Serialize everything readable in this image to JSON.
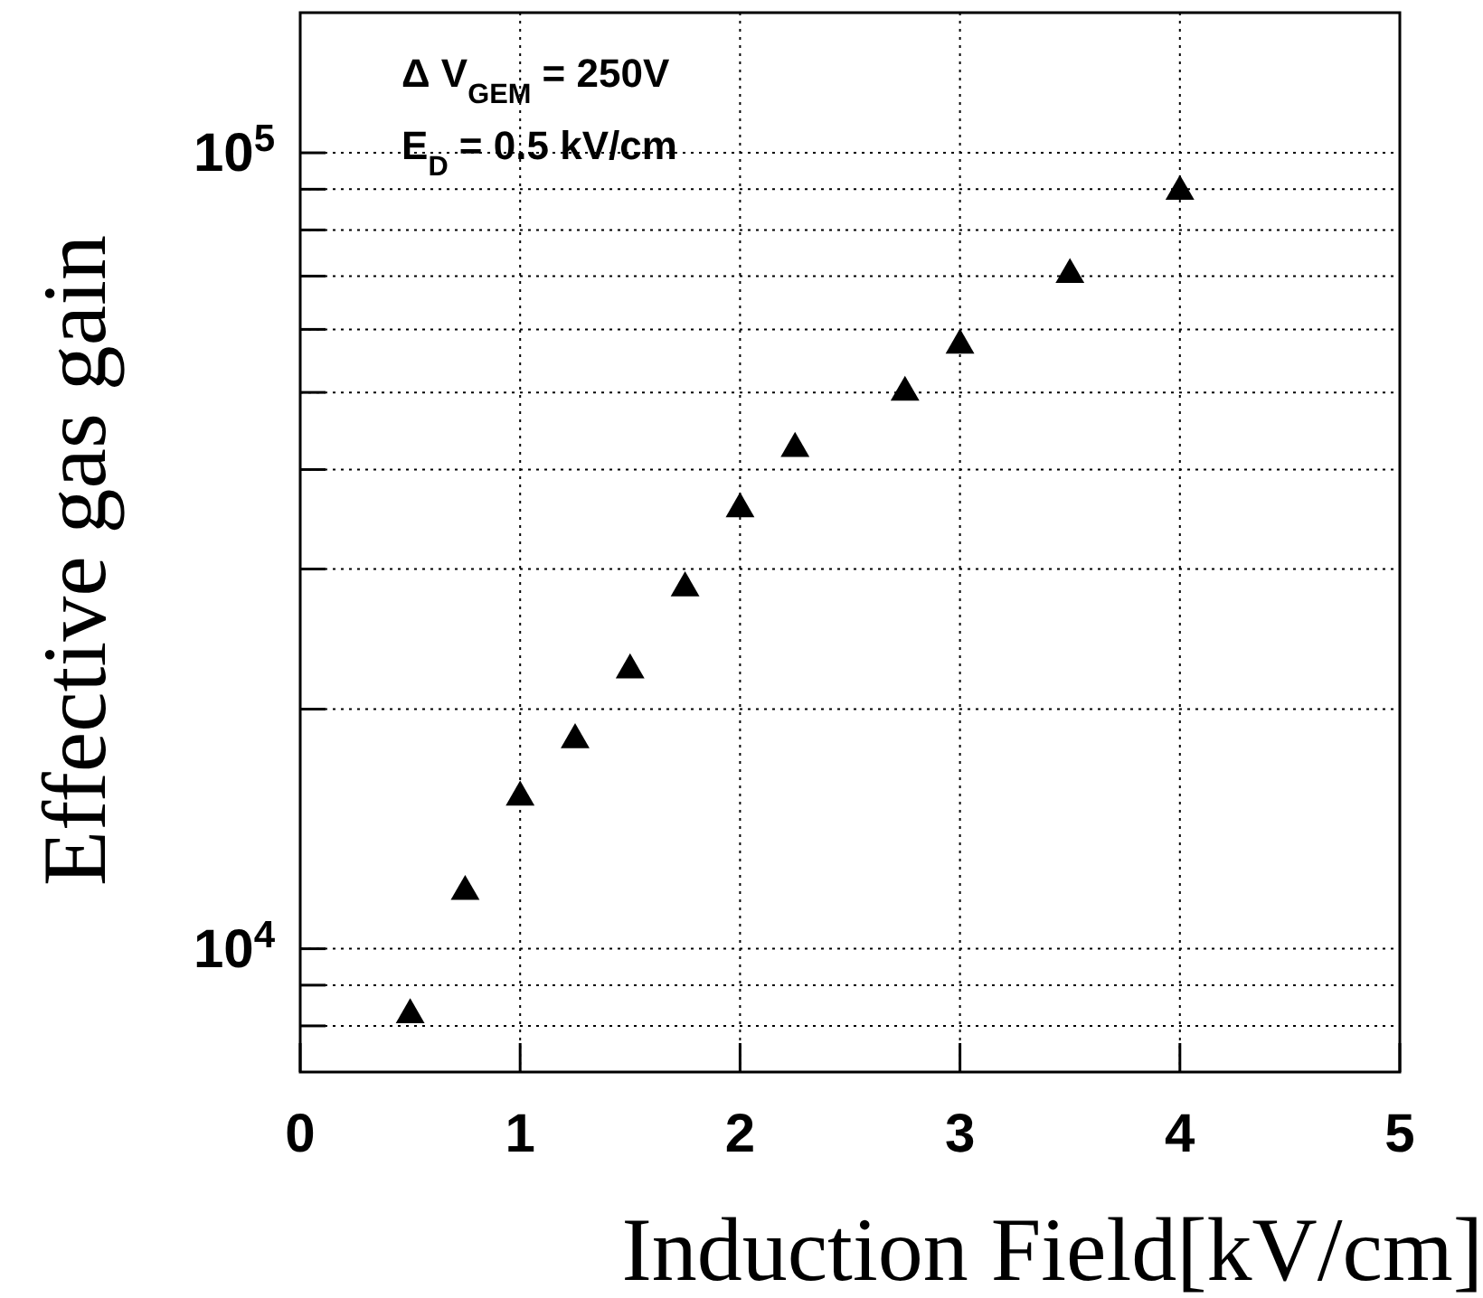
{
  "chart_data": {
    "type": "scatter",
    "xlabel": "Induction Field[kV/cm]",
    "ylabel": "Effective gas gain",
    "annotations": [
      "Δ V$_{GEM}$ = 250V",
      "E$_{D}$ = 0.5 kV/cm"
    ],
    "x": [
      0.5,
      0.75,
      1,
      1.25,
      1.5,
      1.75,
      2,
      2.25,
      2.75,
      3,
      3.5,
      4
    ],
    "series": [
      {
        "color": "#000000",
        "values": [
          8260,
          11800,
          15500,
          18300,
          22400,
          28400,
          35700,
          42500,
          50000,
          57300,
          70300,
          89400
        ]
      }
    ],
    "xlim": [
      0,
      5
    ],
    "xticks": [
      0,
      1,
      2,
      3,
      4,
      5
    ],
    "ylim": [
      7000,
      150000
    ],
    "yticks": [
      {
        "value": 8000,
        "label": null
      },
      {
        "value": 9000,
        "label": null
      },
      {
        "value": 10000,
        "label": "10$^{4}$"
      },
      {
        "value": 20000,
        "label": null
      },
      {
        "value": 30000,
        "label": null
      },
      {
        "value": 40000,
        "label": null
      },
      {
        "value": 50000,
        "label": null
      },
      {
        "value": 60000,
        "label": null
      },
      {
        "value": 70000,
        "label": null
      },
      {
        "value": 80000,
        "label": null
      },
      {
        "value": 90000,
        "label": null
      },
      {
        "value": 100000,
        "label": "10$^{5}$"
      }
    ],
    "log": "y",
    "grid": true,
    "marker": "triangle"
  }
}
